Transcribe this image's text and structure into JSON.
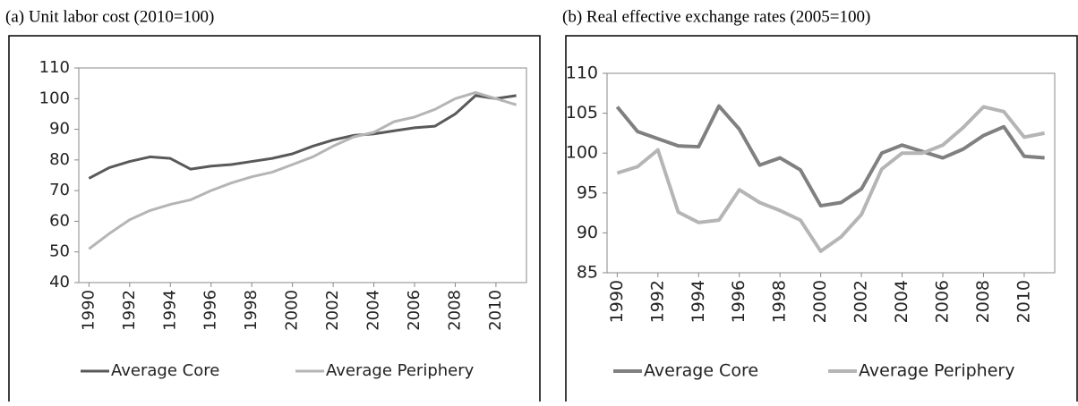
{
  "chart_data": [
    {
      "type": "line",
      "title": "(a)  Unit labor cost (2010=100)",
      "x": [
        1990,
        1991,
        1992,
        1993,
        1994,
        1995,
        1996,
        1997,
        1998,
        1999,
        2000,
        2001,
        2002,
        2003,
        2004,
        2005,
        2006,
        2007,
        2008,
        2009,
        2010,
        2011
      ],
      "xlim": [
        1989.5,
        2011.5
      ],
      "xticks": [
        1990,
        1992,
        1994,
        1996,
        1998,
        2000,
        2002,
        2004,
        2006,
        2008,
        2010
      ],
      "ylim": [
        40,
        110
      ],
      "yticks": [
        40,
        50,
        60,
        70,
        80,
        90,
        100,
        110
      ],
      "series": [
        {
          "name": "Average Core",
          "color": "#595959",
          "values": [
            74,
            77.5,
            79.5,
            81,
            80.5,
            77,
            78,
            78.5,
            79.5,
            80.5,
            82,
            84.5,
            86.5,
            88,
            88.5,
            89.5,
            90.5,
            91,
            95,
            101,
            100,
            101
          ]
        },
        {
          "name": "Average Periphery",
          "color": "#b5b5b5",
          "values": [
            51,
            56,
            60.5,
            63.5,
            65.5,
            67,
            70,
            72.5,
            74.5,
            76,
            78.5,
            81,
            84.5,
            87.5,
            89,
            92.5,
            94,
            96.5,
            100,
            102,
            100,
            98
          ]
        }
      ]
    },
    {
      "type": "line",
      "title": "(b) Real effective exchange rates (2005=100)",
      "x": [
        1990,
        1991,
        1992,
        1993,
        1994,
        1995,
        1996,
        1997,
        1998,
        1999,
        2000,
        2001,
        2002,
        2003,
        2004,
        2005,
        2006,
        2007,
        2008,
        2009,
        2010,
        2011
      ],
      "xlim": [
        1989.5,
        2011.5
      ],
      "xticks": [
        1990,
        1992,
        1994,
        1996,
        1998,
        2000,
        2002,
        2004,
        2006,
        2008,
        2010
      ],
      "ylim": [
        85,
        110
      ],
      "yticks": [
        85,
        90,
        95,
        100,
        105,
        110
      ],
      "series": [
        {
          "name": "Average Core",
          "color": "#808080",
          "values": [
            105.8,
            102.7,
            101.8,
            100.9,
            100.8,
            105.9,
            103,
            98.5,
            99.4,
            97.9,
            93.4,
            93.8,
            95.5,
            100,
            101,
            100.2,
            99.4,
            100.5,
            102.2,
            103.3,
            99.6,
            99.4
          ]
        },
        {
          "name": "Average Periphery",
          "color": "#b5b5b5",
          "values": [
            97.5,
            98.3,
            100.4,
            92.6,
            91.3,
            91.6,
            95.4,
            93.8,
            92.8,
            91.6,
            87.7,
            89.5,
            92.3,
            98,
            100,
            100,
            101,
            103.2,
            105.8,
            105.2,
            102,
            102.5
          ]
        }
      ]
    }
  ]
}
